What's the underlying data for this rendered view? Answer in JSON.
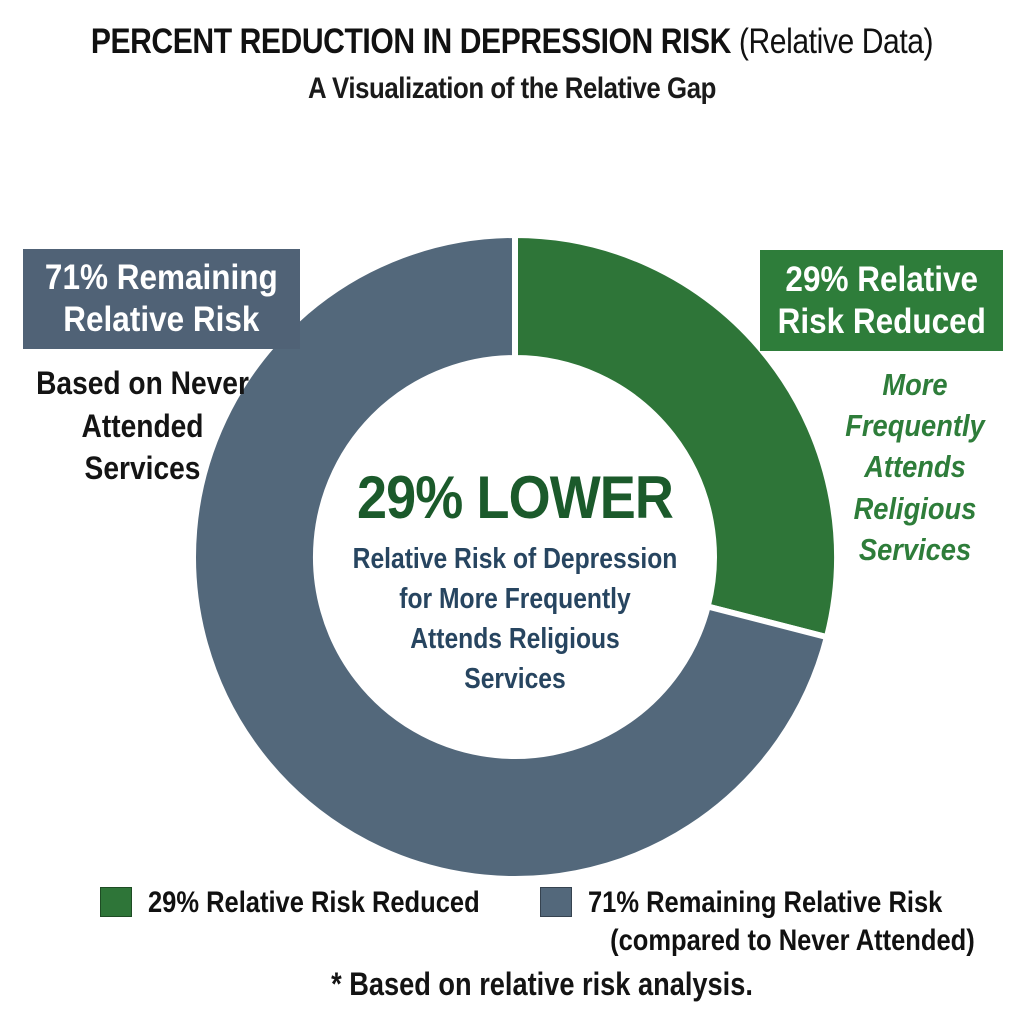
{
  "title": {
    "main": "PERCENT REDUCTION IN DEPRESSION RISK",
    "suffix": " (Relative Data)",
    "subtitle": "A Visualization of the Relative Gap"
  },
  "chart_data": {
    "type": "pie",
    "variant": "donut",
    "title": "PERCENT REDUCTION IN DEPRESSION RISK (Relative Data)",
    "subtitle": "A Visualization of the Relative Gap",
    "start_angle": "top",
    "direction": "clockwise",
    "slices": [
      {
        "label": "29% Relative Risk Reduced",
        "value": 29,
        "color": "#2e7538"
      },
      {
        "label": "71% Remaining Relative Risk (compared to Never Attended)",
        "value": 71,
        "color": "#53687b"
      }
    ],
    "center_label": {
      "headline": "29% LOWER",
      "description": "Relative Risk of Depression for More Frequently Attends Religious Services"
    },
    "legend_position": "bottom",
    "footnote": "* Based on relative risk analysis."
  },
  "donut_center": {
    "headline": "29% LOWER",
    "lines": [
      "Relative Risk of Depression",
      "for More Frequently",
      "Attends Religious",
      "Services"
    ]
  },
  "left_callout": {
    "box_lines": [
      "71% Remaining",
      "Relative Risk"
    ],
    "sub_lines": [
      "Based on Never",
      "Attended",
      "Services"
    ]
  },
  "right_callout": {
    "box_lines": [
      "29% Relative",
      "Risk Reduced"
    ],
    "sub_lines": [
      "More",
      "Frequently",
      "Attends",
      "Religious",
      "Services"
    ]
  },
  "legend": {
    "items": [
      {
        "color": "#2e7538",
        "label_lines": [
          "29% Relative Risk Reduced"
        ]
      },
      {
        "color": "#53687b",
        "label_lines": [
          "71% Remaining Relative Risk",
          "(compared to Never Attended)"
        ]
      }
    ]
  },
  "footnote": "* Based on relative risk analysis.",
  "colors": {
    "background": "#ffffff",
    "green_slice": "#2e7538",
    "green_box": "#2e7d3a",
    "headline_green": "#1b5a2b",
    "slate_slice": "#53687b",
    "slate_box": "#506276",
    "center_text": "#274560",
    "black_text": "#141414"
  }
}
